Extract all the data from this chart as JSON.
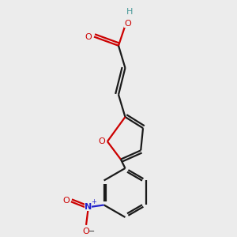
{
  "bg_color": "#ececec",
  "bond_color": "#1a1a1a",
  "oxygen_color": "#cc0000",
  "nitrogen_color": "#2222cc",
  "hydrogen_color": "#4a9999",
  "line_width": 1.6,
  "figsize": [
    3.0,
    3.0
  ],
  "dpi": 100,
  "xlim": [
    -1.5,
    1.5
  ],
  "ylim": [
    -3.2,
    2.0
  ]
}
